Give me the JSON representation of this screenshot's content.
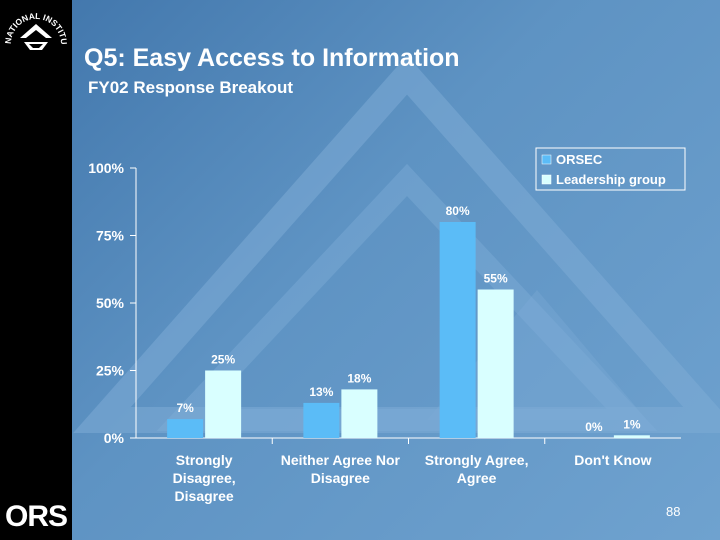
{
  "slide": {
    "title": "Q5:  Easy Access to Information",
    "subtitle": "FY02 Response Breakout",
    "page_number": "88",
    "sidebar_logo_text": "ORS",
    "seal_text": "NATIONAL INSTITUTES OF HEALTH"
  },
  "colors": {
    "orsec": "#5bbcf7",
    "leadership": "#d9ffff",
    "text": "#ffffff"
  },
  "chart_data": {
    "type": "bar",
    "categories": [
      [
        "Strongly",
        "Disagree,",
        "Disagree"
      ],
      [
        "Neither Agree Nor",
        "Disagree"
      ],
      [
        "Strongly Agree,",
        "Agree"
      ],
      [
        "Don't Know"
      ]
    ],
    "series": [
      {
        "name": "ORSEC",
        "values": [
          7,
          13,
          80,
          0
        ],
        "labels": [
          "7%",
          "13%",
          "80%",
          "0%"
        ]
      },
      {
        "name": "Leadership group",
        "values": [
          25,
          18,
          55,
          1
        ],
        "labels": [
          "25%",
          "18%",
          "55%",
          "1%"
        ]
      }
    ],
    "yticks": [
      "0%",
      "25%",
      "50%",
      "75%",
      "100%"
    ],
    "ylim": [
      0,
      100
    ],
    "legend_position": "top-right"
  }
}
